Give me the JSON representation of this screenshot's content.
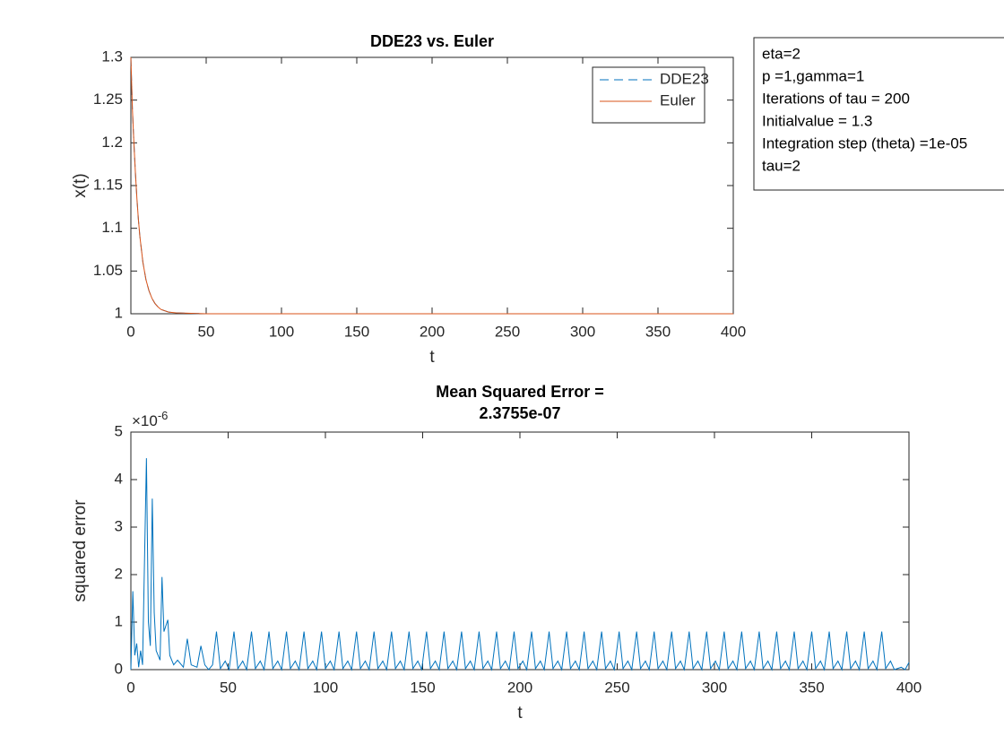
{
  "chart_data": [
    {
      "type": "line",
      "title": "DDE23 vs. Euler",
      "xlabel": "t",
      "ylabel": "x(t)",
      "x": [
        0,
        1,
        2,
        3,
        4,
        5,
        6,
        8,
        10,
        12,
        14,
        16,
        18,
        20,
        25,
        30,
        50,
        100,
        150,
        200,
        250,
        300,
        350,
        400
      ],
      "series": [
        {
          "name": "DDE23",
          "color": "#0072bd",
          "linestyle": "dashed",
          "values": [
            1.3,
            1.24,
            1.2,
            1.165,
            1.135,
            1.11,
            1.09,
            1.06,
            1.04,
            1.027,
            1.018,
            1.012,
            1.008,
            1.005,
            1.002,
            1.001,
            1,
            1,
            1,
            1,
            1,
            1,
            1,
            1
          ]
        },
        {
          "name": "Euler",
          "color": "#d95319",
          "linestyle": "solid",
          "values": [
            1.3,
            1.24,
            1.2,
            1.165,
            1.135,
            1.11,
            1.09,
            1.06,
            1.04,
            1.027,
            1.018,
            1.012,
            1.008,
            1.005,
            1.002,
            1.001,
            1,
            1,
            1,
            1,
            1,
            1,
            1,
            1
          ]
        }
      ],
      "xlim": [
        0,
        400
      ],
      "ylim": [
        1,
        1.3
      ],
      "xticks": [
        0,
        50,
        100,
        150,
        200,
        250,
        300,
        350,
        400
      ],
      "yticks": [
        1,
        1.05,
        1.1,
        1.15,
        1.2,
        1.25,
        1.3
      ],
      "legend": "northeast",
      "box": true
    },
    {
      "type": "line",
      "title": [
        "Mean Squared Error =",
        "2.3755e-07"
      ],
      "xlabel": "t",
      "ylabel": "squared error",
      "yexponent": {
        "base": "×10",
        "power": "-6"
      },
      "color": "#0072bd",
      "x": [
        0,
        1,
        2,
        3,
        4,
        5,
        6,
        8,
        9,
        10,
        11,
        12,
        13,
        15,
        16,
        17,
        19,
        20,
        22,
        24,
        27,
        29,
        31,
        34,
        36,
        38,
        40,
        42,
        44,
        46,
        48.5,
        50.5,
        53,
        55,
        57.5,
        59.5,
        62,
        64,
        66.5,
        68.5,
        71,
        73,
        75.5,
        77.5,
        80,
        82,
        84.5,
        86.5,
        89,
        91,
        93.5,
        95.5,
        98,
        100,
        102.5,
        104.5,
        107,
        109,
        111.5,
        113.5,
        116,
        118,
        120.5,
        122.5,
        125,
        127,
        129.5,
        131.5,
        134,
        136,
        138.5,
        140.5,
        143,
        145,
        147.5,
        149.5,
        152,
        154,
        156.5,
        158.5,
        161,
        163,
        165.5,
        167.5,
        170,
        172,
        174.5,
        176.5,
        179,
        181,
        183.5,
        185.5,
        188,
        190,
        192.5,
        194.5,
        197,
        199,
        201.5,
        203.5,
        206,
        208,
        210.5,
        212.5,
        215,
        217,
        219.5,
        221.5,
        224,
        226,
        228.5,
        230.5,
        233,
        235,
        237.5,
        239.5,
        242,
        244,
        246.5,
        248.5,
        251,
        253,
        255.5,
        257.5,
        260,
        262,
        264.5,
        266.5,
        269,
        271,
        273.5,
        275.5,
        278,
        280,
        282.5,
        284.5,
        287,
        289,
        291.5,
        293.5,
        296,
        298,
        300.5,
        302.5,
        305,
        307,
        309.5,
        311.5,
        314,
        316,
        318.5,
        320.5,
        323,
        325,
        327.5,
        329.5,
        332,
        334,
        336.5,
        338.5,
        341,
        343,
        345.5,
        347.5,
        350,
        352,
        354.5,
        356.5,
        359,
        361,
        363.5,
        365.5,
        368,
        370,
        372.5,
        374.5,
        377,
        379,
        381.5,
        383.5,
        386,
        388,
        390.5,
        392.5,
        396,
        398,
        400
      ],
      "values": [
        0,
        1.65,
        0.3,
        0.55,
        0.05,
        0.4,
        0.1,
        4.45,
        1.0,
        0.5,
        3.6,
        1.2,
        0.4,
        0.2,
        1.95,
        0.8,
        1.05,
        0.3,
        0.1,
        0.2,
        0.05,
        0.65,
        0.1,
        0.05,
        0.5,
        0.1,
        0,
        0.1,
        0.8,
        0.02,
        0.18,
        0,
        0.8,
        0.02,
        0.18,
        0,
        0.8,
        0.02,
        0.18,
        0,
        0.8,
        0.02,
        0.18,
        0,
        0.8,
        0.02,
        0.18,
        0,
        0.8,
        0.02,
        0.18,
        0,
        0.8,
        0.02,
        0.18,
        0,
        0.8,
        0.02,
        0.18,
        0,
        0.8,
        0.02,
        0.18,
        0,
        0.8,
        0.02,
        0.18,
        0,
        0.8,
        0.02,
        0.18,
        0,
        0.8,
        0.02,
        0.18,
        0,
        0.8,
        0.02,
        0.18,
        0,
        0.8,
        0.02,
        0.18,
        0,
        0.8,
        0.02,
        0.18,
        0,
        0.8,
        0.02,
        0.18,
        0,
        0.8,
        0.02,
        0.18,
        0,
        0.8,
        0.02,
        0.18,
        0,
        0.8,
        0.02,
        0.18,
        0,
        0.8,
        0.02,
        0.18,
        0,
        0.8,
        0.02,
        0.18,
        0,
        0.8,
        0.02,
        0.18,
        0,
        0.8,
        0.02,
        0.18,
        0,
        0.8,
        0.02,
        0.18,
        0,
        0.8,
        0.02,
        0.18,
        0,
        0.8,
        0.02,
        0.18,
        0,
        0.8,
        0.02,
        0.18,
        0,
        0.8,
        0.02,
        0.18,
        0,
        0.8,
        0.02,
        0.18,
        0,
        0.8,
        0.02,
        0.18,
        0,
        0.8,
        0.02,
        0.18,
        0,
        0.8,
        0.02,
        0.18,
        0,
        0.8,
        0.02,
        0.18,
        0,
        0.8,
        0.02,
        0.18,
        0,
        0.8,
        0.02,
        0.18,
        0,
        0.8,
        0.02,
        0.18,
        0,
        0.8,
        0.02,
        0.18,
        0,
        0.8,
        0.02,
        0.18,
        0,
        0.8,
        0.02,
        0.18,
        0,
        0.05,
        0,
        0.15
      ],
      "xlim": [
        0,
        400
      ],
      "ylim": [
        0,
        5
      ],
      "xticks": [
        0,
        50,
        100,
        150,
        200,
        250,
        300,
        350,
        400
      ],
      "yticks": [
        0,
        1,
        2,
        3,
        4,
        5
      ],
      "box": true
    }
  ],
  "annotation": {
    "lines": [
      "eta=2",
      "p =1,gamma=1",
      "Iterations of tau = 200",
      "Initialvalue = 1.3",
      "Integration step (theta) =1e-05",
      "tau=2"
    ]
  }
}
